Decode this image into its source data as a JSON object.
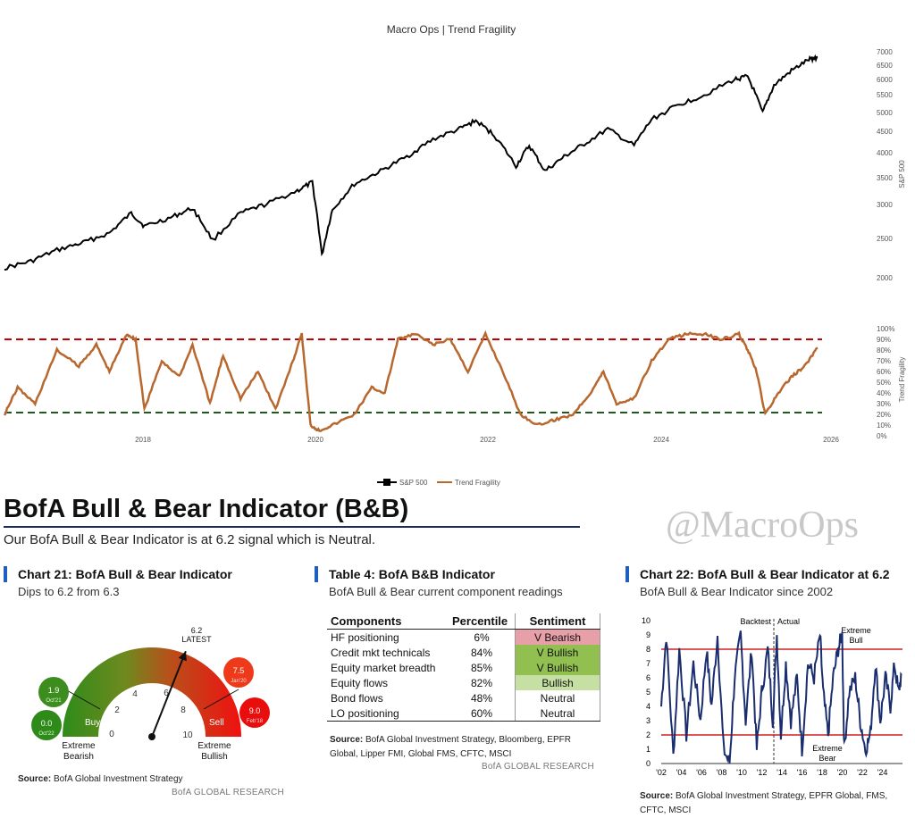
{
  "top": {
    "title": "Macro Ops | Trend Fragility",
    "x_ticks": [
      "2018",
      "2020",
      "2022",
      "2024",
      "2026"
    ],
    "sp_ticks": [
      "7000",
      "6500",
      "6000",
      "5500",
      "5000",
      "4500",
      "4000",
      "3500",
      "3000",
      "2500",
      "2000"
    ],
    "tf_ticks": [
      "100%",
      "90%",
      "80%",
      "70%",
      "60%",
      "50%",
      "40%",
      "30%",
      "20%",
      "10%",
      "0%"
    ],
    "sp_axis_label": "S&P 500",
    "tf_axis_label": "Trend Fragility",
    "legend": [
      "S&P 500",
      "Trend Fragility"
    ],
    "colors": {
      "sp": "#000000",
      "tf": "#b8682e",
      "upper_line": "#c00000",
      "lower_line": "#1e5a1e"
    }
  },
  "chart_data": [
    {
      "type": "line",
      "series": [
        {
          "name": "S&P 500",
          "x": [
            2016.6,
            2016.9,
            2017.2,
            2017.5,
            2017.8,
            2018.05,
            2018.2,
            2018.5,
            2018.75,
            2018.98,
            2019.3,
            2019.6,
            2019.95,
            2020.12,
            2020.23,
            2020.35,
            2020.6,
            2020.9,
            2021.2,
            2021.5,
            2021.8,
            2021.99,
            2022.2,
            2022.45,
            2022.6,
            2022.78,
            2023.0,
            2023.2,
            2023.5,
            2023.8,
            2024.0,
            2024.3,
            2024.6,
            2024.95,
            2025.1,
            2025.27,
            2025.4,
            2025.6,
            2025.8,
            2025.9
          ],
          "values": [
            2100,
            2180,
            2320,
            2420,
            2550,
            2850,
            2650,
            2780,
            2930,
            2450,
            2850,
            3000,
            3230,
            3380,
            2250,
            2900,
            3350,
            3600,
            3900,
            4300,
            4550,
            4770,
            4400,
            3700,
            4150,
            3600,
            3900,
            4150,
            4550,
            4150,
            4800,
            5200,
            5500,
            6000,
            6100,
            4980,
            5800,
            6300,
            6700,
            6800
          ]
        }
      ],
      "title": "Macro Ops | Trend Fragility",
      "ylabel": "S&P 500",
      "yscale": "log",
      "ylim": [
        1850,
        7200
      ],
      "xlim": [
        2016.6,
        2025.95
      ]
    },
    {
      "type": "line",
      "series": [
        {
          "name": "Trend Fragility",
          "x": [
            2016.6,
            2016.75,
            2016.95,
            2017.2,
            2017.45,
            2017.65,
            2017.8,
            2018.0,
            2018.1,
            2018.2,
            2018.4,
            2018.6,
            2018.75,
            2018.95,
            2019.1,
            2019.3,
            2019.5,
            2019.7,
            2019.9,
            2020.0,
            2020.1,
            2020.2,
            2020.35,
            2020.6,
            2020.8,
            2020.95,
            2021.1,
            2021.3,
            2021.5,
            2021.7,
            2021.9,
            2022.1,
            2022.3,
            2022.5,
            2022.7,
            2022.9,
            2023.1,
            2023.3,
            2023.45,
            2023.6,
            2023.8,
            2024.0,
            2024.2,
            2024.4,
            2024.6,
            2024.8,
            2025.0,
            2025.1,
            2025.2,
            2025.3,
            2025.45,
            2025.6,
            2025.75,
            2025.9
          ],
          "values": [
            20,
            45,
            30,
            80,
            65,
            85,
            60,
            95,
            90,
            25,
            70,
            55,
            85,
            30,
            75,
            35,
            60,
            25,
            70,
            95,
            10,
            5,
            10,
            20,
            45,
            40,
            90,
            95,
            85,
            90,
            60,
            95,
            60,
            20,
            10,
            15,
            20,
            40,
            60,
            30,
            35,
            70,
            90,
            95,
            95,
            90,
            95,
            80,
            60,
            20,
            40,
            55,
            65,
            82
          ]
        }
      ],
      "ylabel": "Trend Fragility",
      "ylim": [
        0,
        100
      ],
      "xlim": [
        2016.6,
        2025.95
      ],
      "thresholds": [
        90,
        20
      ]
    },
    {
      "type": "gauge",
      "title": "Chart 21: BofA Bull & Bear Indicator",
      "value": 6.2,
      "range": [
        0,
        10
      ],
      "ticks": [
        0,
        2,
        4,
        6,
        8,
        10
      ]
    },
    {
      "type": "line",
      "title": "Chart 22: BofA Bull & Bear Indicator at 6.2",
      "series": [
        {
          "name": "BofA Bull & Bear Indicator",
          "x": [
            2002,
            2002.5,
            2003.2,
            2003.8,
            2004.5,
            2005.2,
            2005.9,
            2006.5,
            2007.0,
            2007.6,
            2008.2,
            2008.8,
            2009.3,
            2009.9,
            2010.4,
            2011.0,
            2011.5,
            2012.0,
            2012.6,
            2013.1,
            2013.5,
            2013.9,
            2014.4,
            2014.9,
            2015.5,
            2016.0,
            2016.6,
            2017.2,
            2017.8,
            2018.1,
            2018.6,
            2019.1,
            2019.6,
            2020.0,
            2020.2,
            2020.7,
            2021.3,
            2021.8,
            2022.3,
            2022.8,
            2023.3,
            2023.8,
            2024.3,
            2024.8,
            2025.2,
            2025.6,
            2025.9
          ],
          "values": [
            4,
            9,
            0.5,
            8,
            2,
            7,
            3,
            8,
            4,
            9,
            1,
            0,
            6,
            9,
            3,
            8,
            1,
            5,
            8,
            3,
            9,
            2,
            7,
            3,
            6,
            1,
            7,
            6,
            9,
            5,
            2,
            6,
            8,
            9,
            1,
            5,
            6,
            3,
            1,
            2,
            7,
            3,
            6,
            4,
            7,
            5,
            6.2
          ]
        }
      ],
      "xlim": [
        2002,
        2026
      ],
      "ylim": [
        0,
        10
      ],
      "thresholds": [
        8,
        2
      ]
    }
  ],
  "bofa": {
    "heading": "BofA Bull & Bear Indicator (B&B)",
    "subheading": "Our BofA Bull & Bear Indicator is at 6.2 signal which is Neutral.",
    "watermark": "@MacroOps",
    "chart21": {
      "title": "Chart 21: BofA Bull & Bear Indicator",
      "subtitle": "Dips to 6.2 from 6.3",
      "latest_value": "6.2",
      "latest_label": "LATEST",
      "buy_label": "Buy",
      "sell_label": "Sell",
      "extreme_bearish": [
        "Extreme",
        "Bearish"
      ],
      "extreme_bullish": [
        "Extreme",
        "Bullish"
      ],
      "tick_labels": [
        "0",
        "2",
        "4",
        "6",
        "8",
        "10"
      ],
      "bubbles": [
        {
          "value": "1.9",
          "date": "Oct'21",
          "color": "#3c8c1e"
        },
        {
          "value": "0.0",
          "date": "Oct'22",
          "color": "#2e8b1a"
        },
        {
          "value": "7.5",
          "date": "Jan'20",
          "color": "#ee3a1a"
        },
        {
          "value": "9.0",
          "date": "Feb'18",
          "color": "#e80e0e"
        }
      ],
      "source": "BofA Global Investment Strategy",
      "source_label": "Source:",
      "brand": "BofA GLOBAL RESEARCH"
    },
    "table4": {
      "title": "Table 4: BofA B&B Indicator",
      "subtitle": "BofA Bull & Bear current component readings",
      "headers": [
        "Components",
        "Percentile",
        "Sentiment"
      ],
      "rows": [
        {
          "component": "HF positioning",
          "percentile": "6%",
          "sentiment": "V Bearish",
          "color": "#e8a0a8"
        },
        {
          "component": "Credit mkt technicals",
          "percentile": "84%",
          "sentiment": "V Bullish",
          "color": "#92c050"
        },
        {
          "component": "Equity market breadth",
          "percentile": "85%",
          "sentiment": "V Bullish",
          "color": "#92c050"
        },
        {
          "component": "Equity flows",
          "percentile": "82%",
          "sentiment": "Bullish",
          "color": "#c6e0a4"
        },
        {
          "component": "Bond flows",
          "percentile": "48%",
          "sentiment": "Neutral",
          "color": "#ffffff"
        },
        {
          "component": "LO positioning",
          "percentile": "60%",
          "sentiment": "Neutral",
          "color": "#ffffff"
        }
      ],
      "source_label": "Source:",
      "source": "BofA Global Investment Strategy, Bloomberg, EPFR Global, Lipper FMI, Global FMS, CFTC, MSCI",
      "brand": "BofA GLOBAL RESEARCH"
    },
    "chart22": {
      "title": "Chart 22: BofA Bull & Bear Indicator at 6.2",
      "subtitle": "BofA Bull & Bear Indicator since 2002",
      "y_ticks": [
        "10",
        "9",
        "8",
        "7",
        "6",
        "5",
        "4",
        "3",
        "2",
        "1",
        "0"
      ],
      "x_ticks": [
        "'02",
        "'04",
        "'06",
        "'08",
        "'10",
        "'12",
        "'14",
        "'16",
        "'18",
        "'20",
        "'22",
        "'24"
      ],
      "backtest_label": "Backtest",
      "actual_label": "Actual",
      "extreme_bull": [
        "Extreme",
        "Bull"
      ],
      "extreme_bear": [
        "Extreme",
        "Bear"
      ],
      "source_label": "Source:",
      "source": "BofA Global Investment Strategy, EPFR Global, FMS, CFTC, MSCI",
      "colors": {
        "line": "#1a2d6e",
        "threshold": "#d02020"
      }
    }
  }
}
